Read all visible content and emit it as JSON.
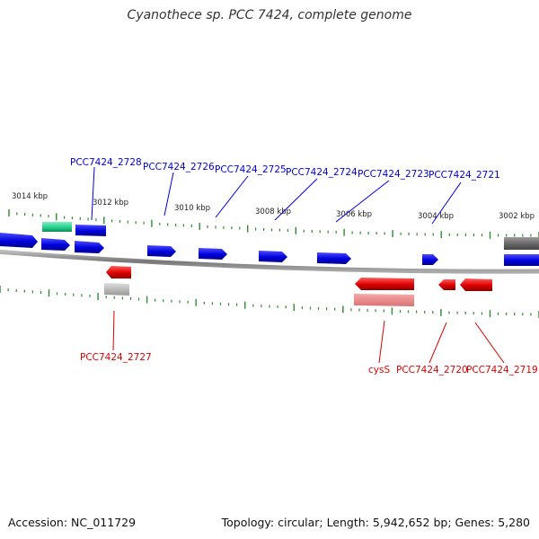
{
  "header": {
    "title": "Cyanothece sp. PCC 7424, complete genome"
  },
  "footer": {
    "accession": "Accession: NC_011729",
    "stats": "Topology: circular; Length: 5,942,652 bp; Genes: 5,280"
  },
  "scale_labels": [
    "3014 kbp",
    "3012 kbp",
    "3010 kbp",
    "3008 kbp",
    "3006 kbp",
    "3004 kbp",
    "3002 kbp"
  ],
  "genes_forward": [
    "PCC7424_2728",
    "PCC7424_2726",
    "PCC7424_2725",
    "PCC7424_2724",
    "PCC7424_2723",
    "PCC7424_2721"
  ],
  "genes_reverse": [
    "PCC7424_2727",
    "cysS",
    "PCC7424_2720",
    "PCC7424_2719"
  ],
  "colors": {
    "forward_gene": "#0000dd",
    "reverse_gene": "#dd0000",
    "rna_feature": "#22cc88",
    "pseudo_feature": "#aaaaaa",
    "backbone": "#888888",
    "ticks": "#2e8b2e"
  }
}
